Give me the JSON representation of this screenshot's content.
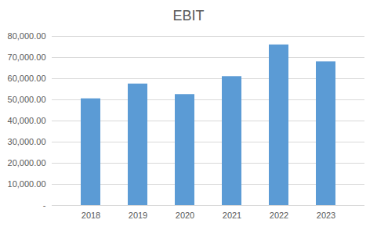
{
  "chart_data": {
    "type": "bar",
    "title": "EBIT",
    "categories": [
      "2018",
      "2019",
      "2020",
      "2021",
      "2022",
      "2023"
    ],
    "values": [
      50500,
      57500,
      52500,
      61000,
      76000,
      68000
    ],
    "color": "#5b9bd5",
    "ylim": [
      0,
      80000
    ],
    "yticks": [
      {
        "value": 0,
        "label": "-"
      },
      {
        "value": 10000,
        "label": "10,000.00"
      },
      {
        "value": 20000,
        "label": "20,000.00"
      },
      {
        "value": 30000,
        "label": "30,000.00"
      },
      {
        "value": 40000,
        "label": "40,000.00"
      },
      {
        "value": 50000,
        "label": "50,000.00"
      },
      {
        "value": 60000,
        "label": "60,000.00"
      },
      {
        "value": 70000,
        "label": "70,000.00"
      },
      {
        "value": 80000,
        "label": "80,000.00"
      }
    ],
    "grid": true
  }
}
